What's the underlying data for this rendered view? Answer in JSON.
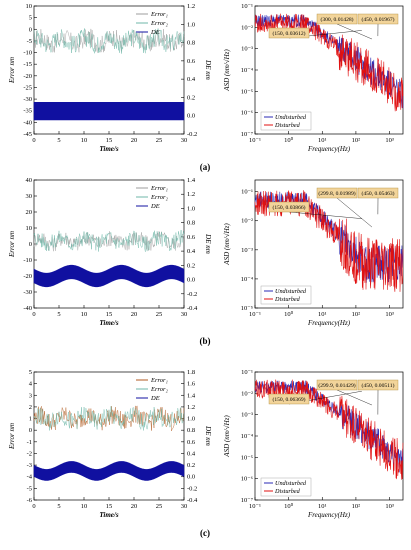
{
  "rows": [
    {
      "caption": "(a)",
      "left": {
        "type": "line",
        "xlabel": "Time/s",
        "ylabel": "Error nm",
        "y2label": "DE nm",
        "xlim": [
          0,
          30
        ],
        "ylim": [
          -45,
          10
        ],
        "y2lim": [
          -0.2,
          1.2
        ],
        "xticks": [
          "0",
          "5",
          "10",
          "15",
          "20",
          "25",
          "30"
        ],
        "yticks": [
          "10",
          "5",
          "0",
          "-5",
          "-10",
          "-15",
          "-20",
          "-25",
          "-30",
          "-35",
          "-40",
          "-45"
        ],
        "y2ticks": [
          "1.2",
          "1.0",
          "0.8",
          "0.6",
          "0.4",
          "0.2",
          "0.0",
          "-0.2"
        ],
        "legend": [
          "Error₁",
          "Error₂",
          "DE"
        ],
        "series": [
          {
            "name": "Error₁",
            "color": "#9e9e9e",
            "mean": -5,
            "amp": 4
          },
          {
            "name": "Error₂",
            "color": "#6fb7a8",
            "mean": -5,
            "amp": 4
          },
          {
            "name": "DE",
            "color": "#1010a0",
            "band": [
              -0.05,
              0.15
            ]
          }
        ]
      },
      "right": {
        "type": "line",
        "xlabel": "Frequency(Hz)",
        "ylabel": "ASD (nm/√Hz)",
        "xlog": [
          -1,
          3.4
        ],
        "ylog": [
          -7,
          -1
        ],
        "xticks": [
          "10⁻¹",
          "10⁰",
          "10¹",
          "10²",
          "10³"
        ],
        "yticks": [
          "10⁻¹",
          "10⁻²",
          "10⁻³",
          "10⁻⁴",
          "10⁻⁵",
          "10⁻⁶",
          "10⁻⁷"
        ],
        "legend": [
          "Undisturbed",
          "Disturbed"
        ],
        "annotations": [
          {
            "text": "(300, 0.01428)",
            "x": 300,
            "y": 0.01428
          },
          {
            "text": "(450, 0.01967)",
            "x": 450,
            "y": 0.01967
          },
          {
            "text": "(150, 0.03612)",
            "x": 150,
            "y": 0.03612
          }
        ]
      }
    },
    {
      "caption": "(b)",
      "left": {
        "type": "line",
        "xlabel": "Time/s",
        "ylabel": "Error nm",
        "y2label": "DE nm",
        "xlim": [
          0,
          30
        ],
        "ylim": [
          -40,
          40
        ],
        "y2lim": [
          -0.4,
          1.4
        ],
        "xticks": [
          "0",
          "5",
          "10",
          "15",
          "20",
          "25",
          "30"
        ],
        "yticks": [
          "40",
          "30",
          "20",
          "10",
          "0",
          "-10",
          "-20",
          "-30",
          "-40"
        ],
        "y2ticks": [
          "1.4",
          "1.2",
          "1.0",
          "0.8",
          "0.6",
          "0.4",
          "0.2",
          "0.0",
          "-0.2",
          "-0.4"
        ],
        "legend": [
          "Error₁",
          "Error₂",
          "DE"
        ],
        "series": [
          {
            "name": "Error₁",
            "color": "#9e9e9e",
            "mean": 2,
            "amp": 5
          },
          {
            "name": "Error₂",
            "color": "#6fb7a8",
            "mean": 2,
            "amp": 5
          },
          {
            "name": "DE",
            "color": "#1010a0",
            "band": [
              -0.05,
              0.15
            ]
          }
        ]
      },
      "right": {
        "type": "line",
        "xlabel": "Frequency(Hz)",
        "ylabel": "ASD (nm/√Hz)",
        "xlog": [
          -1,
          3.4
        ],
        "ylog": [
          -5,
          -0.6
        ],
        "xticks": [
          "10⁻¹",
          "10⁰",
          "10¹",
          "10²",
          "10³"
        ],
        "yticks": [
          "10⁻¹",
          "10⁻²",
          "10⁻³",
          "10⁻⁴",
          "10⁻⁵"
        ],
        "legend": [
          "Undisturbed",
          "Disturbed"
        ],
        "annotations": [
          {
            "text": "(299.8, 0.01989)",
            "x": 299.8,
            "y": 0.01989
          },
          {
            "text": "(450, 0.05463)",
            "x": 450,
            "y": 0.05463
          },
          {
            "text": "(150, 0.03866)",
            "x": 150,
            "y": 0.03866
          }
        ]
      }
    },
    {
      "caption": "(c)",
      "left": {
        "type": "line",
        "xlabel": "Time/s",
        "ylabel": "Error nm",
        "y2label": "DE nm",
        "xlim": [
          0,
          30
        ],
        "ylim": [
          -6,
          5
        ],
        "y2lim": [
          -0.4,
          1.8
        ],
        "xticks": [
          "0",
          "5",
          "10",
          "15",
          "20",
          "25",
          "30"
        ],
        "yticks": [
          "5",
          "4",
          "3",
          "2",
          "1",
          "0",
          "-1",
          "-2",
          "-3",
          "-4",
          "-5",
          "-6"
        ],
        "y2ticks": [
          "1.8",
          "1.6",
          "1.4",
          "1.2",
          "1.0",
          "0.8",
          "0.6",
          "0.4",
          "0.2",
          "0.0",
          "-0.2",
          "-0.4"
        ],
        "legend": [
          "Error₁",
          "Error₂",
          "DE"
        ],
        "series": [
          {
            "name": "Error₁",
            "color": "#b05a20",
            "mean": 1,
            "amp": 0.8
          },
          {
            "name": "Error₂",
            "color": "#6fb7a8",
            "mean": 1,
            "amp": 0.8
          },
          {
            "name": "DE",
            "color": "#1010a0",
            "band": [
              0.0,
              0.2
            ]
          }
        ]
      },
      "right": {
        "type": "line",
        "xlabel": "Frequency(Hz)",
        "ylabel": "ASD (nm/√Hz)",
        "xlog": [
          -1,
          3.4
        ],
        "ylog": [
          -7,
          -1
        ],
        "xticks": [
          "10⁻¹",
          "10⁰",
          "10¹",
          "10²",
          "10³"
        ],
        "yticks": [
          "10⁻¹",
          "10⁻²",
          "10⁻³",
          "10⁻⁴",
          "10⁻⁵",
          "10⁻⁶",
          "10⁻⁷"
        ],
        "legend": [
          "Undisturbed",
          "Disturbed"
        ],
        "annotations": [
          {
            "text": "(299.9, 0.01429)",
            "x": 299.9,
            "y": 0.01429
          },
          {
            "text": "(450, 0.00511)",
            "x": 450,
            "y": 0.00511
          },
          {
            "text": "(150, 0.06369)",
            "x": 150,
            "y": 0.06369
          }
        ]
      }
    }
  ],
  "chart_data": [
    {
      "type": "line",
      "panel": "(a) left",
      "xlabel": "Time/s",
      "ylabel": "Error nm",
      "y2label": "DE nm",
      "xlim": [
        0,
        30
      ],
      "ylim": [
        -45,
        10
      ],
      "y2lim": [
        -0.2,
        1.2
      ],
      "series": [
        {
          "name": "Error₁"
        },
        {
          "name": "Error₂"
        },
        {
          "name": "DE"
        }
      ]
    },
    {
      "type": "line",
      "panel": "(a) right",
      "xlabel": "Frequency(Hz)",
      "ylabel": "ASD (nm/√Hz)",
      "log_x": true,
      "log_y": true,
      "xlim": [
        0.1,
        2500
      ],
      "ylim": [
        1e-07,
        0.1
      ],
      "series": [
        {
          "name": "Undisturbed"
        },
        {
          "name": "Disturbed"
        }
      ],
      "points": [
        {
          "x": 300,
          "y": 0.01428
        },
        {
          "x": 450,
          "y": 0.01967
        },
        {
          "x": 150,
          "y": 0.03612
        }
      ]
    },
    {
      "type": "line",
      "panel": "(b) left",
      "xlabel": "Time/s",
      "ylabel": "Error nm",
      "y2label": "DE nm",
      "xlim": [
        0,
        30
      ],
      "ylim": [
        -40,
        40
      ],
      "y2lim": [
        -0.4,
        1.4
      ],
      "series": [
        {
          "name": "Error₁"
        },
        {
          "name": "Error₂"
        },
        {
          "name": "DE"
        }
      ]
    },
    {
      "type": "line",
      "panel": "(b) right",
      "xlabel": "Frequency(Hz)",
      "ylabel": "ASD (nm/√Hz)",
      "log_x": true,
      "log_y": true,
      "xlim": [
        0.1,
        2500
      ],
      "ylim": [
        1e-05,
        0.25
      ],
      "series": [
        {
          "name": "Undisturbed"
        },
        {
          "name": "Disturbed"
        }
      ],
      "points": [
        {
          "x": 299.8,
          "y": 0.01989
        },
        {
          "x": 450,
          "y": 0.05463
        },
        {
          "x": 150,
          "y": 0.03866
        }
      ]
    },
    {
      "type": "line",
      "panel": "(c) left",
      "xlabel": "Time/s",
      "ylabel": "Error nm",
      "y2label": "DE nm",
      "xlim": [
        0,
        30
      ],
      "ylim": [
        -6,
        5
      ],
      "y2lim": [
        -0.4,
        1.8
      ],
      "series": [
        {
          "name": "Error₁"
        },
        {
          "name": "Error₂"
        },
        {
          "name": "DE"
        }
      ]
    },
    {
      "type": "line",
      "panel": "(c) right",
      "xlabel": "Frequency(Hz)",
      "ylabel": "ASD (nm/√Hz)",
      "log_x": true,
      "log_y": true,
      "xlim": [
        0.1,
        2500
      ],
      "ylim": [
        1e-07,
        0.1
      ],
      "series": [
        {
          "name": "Undisturbed"
        },
        {
          "name": "Disturbed"
        }
      ],
      "points": [
        {
          "x": 299.9,
          "y": 0.01429
        },
        {
          "x": 450,
          "y": 0.00511
        },
        {
          "x": 150,
          "y": 0.06369
        }
      ]
    }
  ]
}
